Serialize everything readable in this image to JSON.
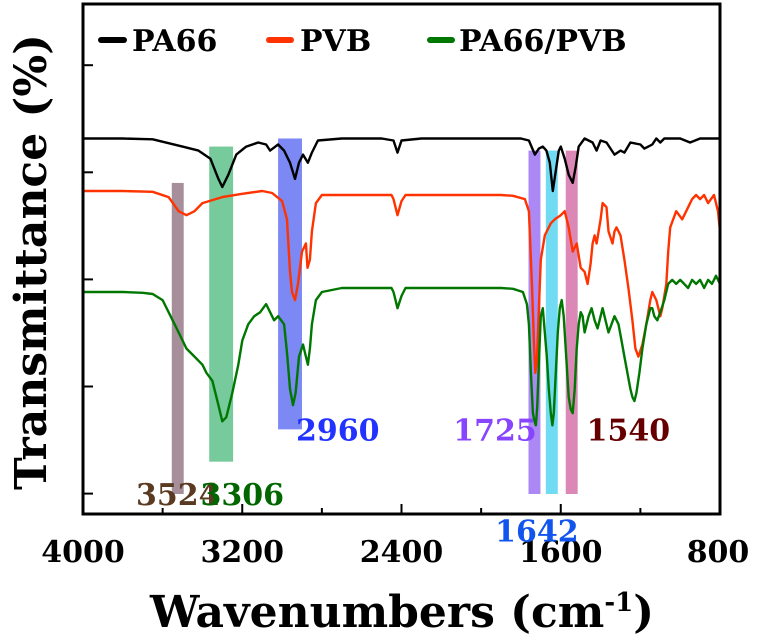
{
  "chart_data": {
    "type": "line",
    "title": "",
    "xlabel": "Wavenumbers (cm",
    "xlabel_sup": "-1",
    "xlabel_close": ")",
    "ylabel": "Transmittance (%)",
    "xlim": [
      4000,
      800
    ],
    "x_ticks": [
      4000,
      3200,
      2400,
      1600,
      800
    ],
    "x_tick_labels": [
      "4000",
      "3200",
      "2400",
      "1600",
      "800"
    ],
    "ylim": [
      0,
      100
    ],
    "y_tick_labels_shown": false,
    "grid": false,
    "legend_position": "top",
    "series": [
      {
        "name": "PA66",
        "color": "#000000",
        "points": [
          [
            4000,
            88
          ],
          [
            3800,
            88
          ],
          [
            3650,
            87.8
          ],
          [
            3500,
            86
          ],
          [
            3420,
            85
          ],
          [
            3360,
            83
          ],
          [
            3320,
            78
          ],
          [
            3300,
            76
          ],
          [
            3270,
            79
          ],
          [
            3230,
            84
          ],
          [
            3180,
            86
          ],
          [
            3120,
            87
          ],
          [
            3080,
            86.5
          ],
          [
            3060,
            85
          ],
          [
            3020,
            86.5
          ],
          [
            2990,
            85
          ],
          [
            2960,
            82
          ],
          [
            2935,
            78
          ],
          [
            2915,
            82
          ],
          [
            2895,
            84
          ],
          [
            2870,
            82
          ],
          [
            2850,
            84.5
          ],
          [
            2820,
            87.5
          ],
          [
            2700,
            88
          ],
          [
            2500,
            88
          ],
          [
            2440,
            87.5
          ],
          [
            2420,
            84.5
          ],
          [
            2400,
            87.5
          ],
          [
            2300,
            88
          ],
          [
            2000,
            88
          ],
          [
            1800,
            88
          ],
          [
            1760,
            87.5
          ],
          [
            1730,
            84
          ],
          [
            1710,
            85.5
          ],
          [
            1690,
            86
          ],
          [
            1672,
            85
          ],
          [
            1655,
            82
          ],
          [
            1640,
            75
          ],
          [
            1628,
            79
          ],
          [
            1610,
            85
          ],
          [
            1600,
            86
          ],
          [
            1580,
            83
          ],
          [
            1560,
            79
          ],
          [
            1540,
            77
          ],
          [
            1525,
            81
          ],
          [
            1510,
            86
          ],
          [
            1480,
            88
          ],
          [
            1440,
            87
          ],
          [
            1420,
            85
          ],
          [
            1400,
            87.5
          ],
          [
            1370,
            87
          ],
          [
            1330,
            84
          ],
          [
            1300,
            85
          ],
          [
            1280,
            84.5
          ],
          [
            1250,
            87
          ],
          [
            1200,
            86.5
          ],
          [
            1180,
            85.5
          ],
          [
            1160,
            86
          ],
          [
            1140,
            86.5
          ],
          [
            1120,
            88
          ],
          [
            1100,
            87
          ],
          [
            1080,
            88
          ],
          [
            1000,
            88
          ],
          [
            950,
            87
          ],
          [
            900,
            88
          ],
          [
            800,
            88
          ]
        ]
      },
      {
        "name": "PVB",
        "color": "#ff3300",
        "points": [
          [
            4000,
            75
          ],
          [
            3800,
            75
          ],
          [
            3650,
            74.8
          ],
          [
            3570,
            73.5
          ],
          [
            3520,
            70
          ],
          [
            3480,
            69
          ],
          [
            3440,
            70
          ],
          [
            3400,
            72
          ],
          [
            3300,
            73.5
          ],
          [
            3200,
            74.3
          ],
          [
            3100,
            75
          ],
          [
            3050,
            74.5
          ],
          [
            3000,
            72.5
          ],
          [
            2975,
            68
          ],
          [
            2960,
            55
          ],
          [
            2950,
            50
          ],
          [
            2935,
            48
          ],
          [
            2920,
            52
          ],
          [
            2900,
            60
          ],
          [
            2880,
            62
          ],
          [
            2872,
            56
          ],
          [
            2860,
            58
          ],
          [
            2850,
            65
          ],
          [
            2830,
            72
          ],
          [
            2800,
            74
          ],
          [
            2700,
            74
          ],
          [
            2600,
            74
          ],
          [
            2500,
            74
          ],
          [
            2450,
            74
          ],
          [
            2440,
            73
          ],
          [
            2420,
            69
          ],
          [
            2400,
            72.5
          ],
          [
            2380,
            74
          ],
          [
            2300,
            74
          ],
          [
            2000,
            74
          ],
          [
            1900,
            74
          ],
          [
            1840,
            73.8
          ],
          [
            1780,
            73
          ],
          [
            1760,
            70
          ],
          [
            1745,
            52
          ],
          [
            1735,
            38
          ],
          [
            1728,
            30
          ],
          [
            1720,
            33
          ],
          [
            1710,
            46
          ],
          [
            1700,
            58
          ],
          [
            1680,
            64
          ],
          [
            1650,
            67
          ],
          [
            1630,
            68
          ],
          [
            1600,
            69
          ],
          [
            1580,
            70
          ],
          [
            1560,
            66
          ],
          [
            1540,
            60
          ],
          [
            1520,
            62
          ],
          [
            1500,
            56
          ],
          [
            1480,
            55
          ],
          [
            1465,
            52
          ],
          [
            1450,
            57
          ],
          [
            1440,
            62
          ],
          [
            1430,
            64
          ],
          [
            1420,
            62
          ],
          [
            1400,
            68
          ],
          [
            1390,
            72
          ],
          [
            1370,
            71
          ],
          [
            1360,
            65
          ],
          [
            1340,
            62
          ],
          [
            1330,
            65
          ],
          [
            1320,
            66
          ],
          [
            1300,
            64
          ],
          [
            1280,
            58
          ],
          [
            1260,
            51
          ],
          [
            1240,
            43
          ],
          [
            1225,
            36
          ],
          [
            1210,
            34
          ],
          [
            1190,
            37
          ],
          [
            1170,
            42
          ],
          [
            1150,
            48
          ],
          [
            1140,
            50
          ],
          [
            1120,
            48
          ],
          [
            1100,
            44
          ],
          [
            1090,
            46
          ],
          [
            1070,
            52
          ],
          [
            1060,
            60
          ],
          [
            1050,
            66
          ],
          [
            1020,
            70
          ],
          [
            990,
            68
          ],
          [
            970,
            70
          ],
          [
            940,
            73
          ],
          [
            920,
            74
          ],
          [
            900,
            73
          ],
          [
            880,
            74
          ],
          [
            860,
            72
          ],
          [
            830,
            74
          ],
          [
            810,
            70
          ],
          [
            800,
            65
          ]
        ]
      },
      {
        "name": "PA66/PVB",
        "color": "#007700",
        "points": [
          [
            4000,
            50
          ],
          [
            3800,
            50
          ],
          [
            3700,
            49.8
          ],
          [
            3650,
            49.5
          ],
          [
            3600,
            48
          ],
          [
            3560,
            44
          ],
          [
            3520,
            40
          ],
          [
            3480,
            36
          ],
          [
            3440,
            34
          ],
          [
            3400,
            32
          ],
          [
            3380,
            30
          ],
          [
            3350,
            28
          ],
          [
            3320,
            22
          ],
          [
            3300,
            18
          ],
          [
            3280,
            19
          ],
          [
            3250,
            25
          ],
          [
            3220,
            32
          ],
          [
            3200,
            38
          ],
          [
            3170,
            42
          ],
          [
            3140,
            44
          ],
          [
            3110,
            45
          ],
          [
            3080,
            47
          ],
          [
            3060,
            45
          ],
          [
            3040,
            43
          ],
          [
            3020,
            44
          ],
          [
            2990,
            42
          ],
          [
            2975,
            35
          ],
          [
            2960,
            26
          ],
          [
            2945,
            22
          ],
          [
            2932,
            25
          ],
          [
            2915,
            34
          ],
          [
            2895,
            37
          ],
          [
            2880,
            34
          ],
          [
            2870,
            32
          ],
          [
            2860,
            36
          ],
          [
            2850,
            42
          ],
          [
            2830,
            48
          ],
          [
            2800,
            50
          ],
          [
            2700,
            51
          ],
          [
            2600,
            51
          ],
          [
            2500,
            51
          ],
          [
            2450,
            51
          ],
          [
            2440,
            50
          ],
          [
            2420,
            46
          ],
          [
            2400,
            49
          ],
          [
            2380,
            51
          ],
          [
            2300,
            51
          ],
          [
            2000,
            51
          ],
          [
            1900,
            51
          ],
          [
            1840,
            50.8
          ],
          [
            1790,
            50
          ],
          [
            1770,
            47
          ],
          [
            1760,
            42
          ],
          [
            1750,
            30
          ],
          [
            1740,
            20
          ],
          [
            1732,
            18
          ],
          [
            1725,
            17
          ],
          [
            1718,
            22
          ],
          [
            1708,
            35
          ],
          [
            1700,
            44
          ],
          [
            1690,
            46
          ],
          [
            1680,
            40
          ],
          [
            1670,
            34
          ],
          [
            1660,
            26
          ],
          [
            1650,
            20
          ],
          [
            1642,
            17
          ],
          [
            1635,
            20
          ],
          [
            1625,
            30
          ],
          [
            1615,
            40
          ],
          [
            1605,
            46
          ],
          [
            1595,
            48
          ],
          [
            1585,
            44
          ],
          [
            1570,
            32
          ],
          [
            1560,
            24
          ],
          [
            1550,
            21
          ],
          [
            1540,
            20
          ],
          [
            1530,
            26
          ],
          [
            1520,
            36
          ],
          [
            1510,
            42
          ],
          [
            1500,
            45
          ],
          [
            1490,
            44
          ],
          [
            1480,
            40
          ],
          [
            1470,
            42
          ],
          [
            1460,
            44
          ],
          [
            1445,
            46
          ],
          [
            1430,
            43
          ],
          [
            1415,
            41
          ],
          [
            1400,
            44
          ],
          [
            1390,
            46
          ],
          [
            1375,
            43
          ],
          [
            1360,
            40
          ],
          [
            1345,
            42
          ],
          [
            1330,
            44
          ],
          [
            1310,
            42
          ],
          [
            1295,
            38
          ],
          [
            1280,
            34
          ],
          [
            1265,
            30
          ],
          [
            1250,
            26
          ],
          [
            1240,
            24
          ],
          [
            1230,
            23
          ],
          [
            1220,
            25
          ],
          [
            1205,
            30
          ],
          [
            1190,
            36
          ],
          [
            1170,
            42
          ],
          [
            1150,
            46
          ],
          [
            1140,
            46
          ],
          [
            1130,
            44
          ],
          [
            1115,
            43
          ],
          [
            1100,
            45
          ],
          [
            1080,
            48
          ],
          [
            1060,
            52
          ],
          [
            1040,
            53
          ],
          [
            1020,
            52
          ],
          [
            1000,
            53
          ],
          [
            980,
            52
          ],
          [
            960,
            51
          ],
          [
            940,
            53
          ],
          [
            920,
            52
          ],
          [
            900,
            53
          ],
          [
            880,
            51
          ],
          [
            860,
            53
          ],
          [
            840,
            52
          ],
          [
            820,
            54
          ],
          [
            800,
            52
          ]
        ]
      }
    ],
    "annotations": [
      {
        "label": "3524",
        "x_center": 3524,
        "width": 60,
        "y_top": 77,
        "y_bottom": 0,
        "fill": "#806070",
        "text_color": "#5a3a20",
        "text_anchor_value": 3524,
        "text_y": 0
      },
      {
        "label": "3306",
        "x_center": 3306,
        "width": 120,
        "y_top": 86,
        "y_bottom": 8,
        "fill": "#3cb371",
        "text_color": "#006600",
        "text_anchor_value": 3200,
        "text_y": 0
      },
      {
        "label": "2960",
        "x_center": 2960,
        "width": 120,
        "y_top": 88,
        "y_bottom": 16,
        "fill": "#4455ee",
        "text_color": "#2233ff",
        "text_anchor_value": 2720,
        "text_y": 16
      },
      {
        "label": "1725",
        "x_center": 1732,
        "width": 60,
        "y_top": 85,
        "y_bottom": 0,
        "fill": "#8855ee",
        "text_color": "#8844ff",
        "text_anchor_value": 1930,
        "text_y": 16
      },
      {
        "label": "1642",
        "x_center": 1645,
        "width": 60,
        "y_top": 85,
        "y_bottom": 0,
        "fill": "#33ccee",
        "text_color": "#1155ee",
        "text_anchor_value": 1720,
        "text_y": -9
      },
      {
        "label": "1540",
        "x_center": 1545,
        "width": 60,
        "y_top": 85,
        "y_bottom": 0,
        "fill": "#cc5599",
        "text_color": "#660000",
        "text_anchor_value": 1260,
        "text_y": 16
      }
    ]
  }
}
